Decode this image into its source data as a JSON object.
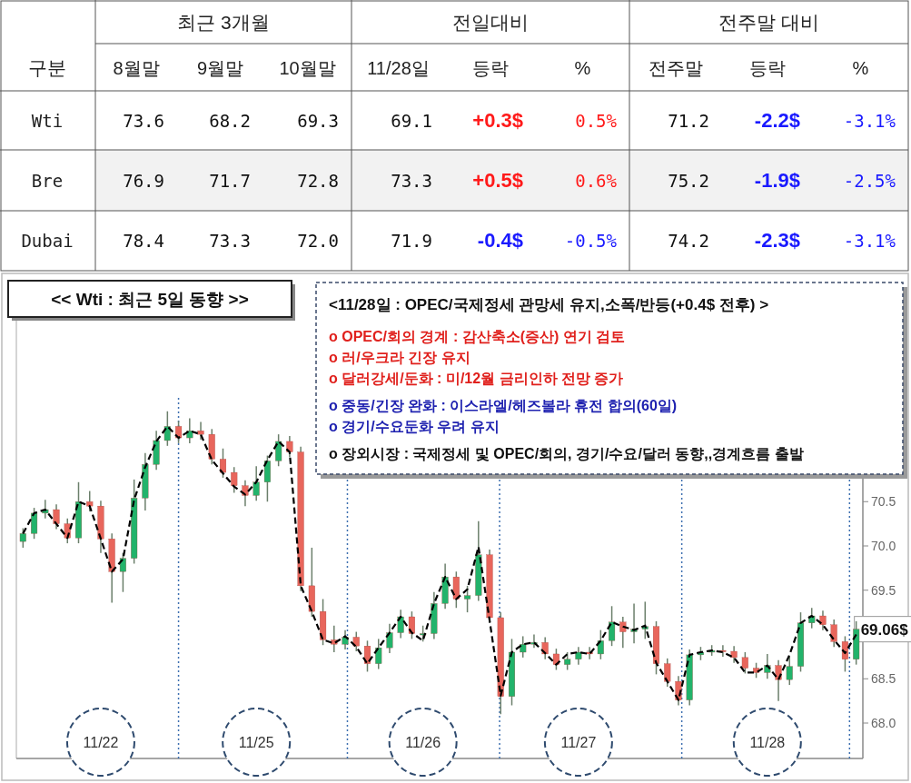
{
  "chart_data": [
    {
      "type": "other",
      "annotations": [
        "구분",
        "최근 3개월",
        "전일대비",
        "전주말 대비"
      ],
      "categories": [
        "8월말",
        "9월말",
        "10월말",
        "11/28일",
        "등락",
        "%",
        "전주말",
        "등락",
        "%"
      ],
      "y_categories": [
        "Wti",
        "Bre",
        "Dubai"
      ],
      "cell_labels": [
        [
          "73.6",
          "68.2",
          "69.3",
          "69.1",
          "+0.3$",
          "0.5%",
          "71.2",
          "-2.2$",
          "-3.1%"
        ],
        [
          "76.9",
          "71.7",
          "72.8",
          "73.3",
          "+0.5$",
          "0.6%",
          "75.2",
          "-1.9$",
          "-2.5%"
        ],
        [
          "78.4",
          "73.3",
          "72.0",
          "71.9",
          "-0.4$",
          "-0.5%",
          "74.2",
          "-2.3$",
          "-3.1%"
        ]
      ]
    },
    {
      "type": "candlestick",
      "title": "<< Wti : 최근 5일 동향 >>",
      "subtitle": "<11/28일 : OPEC/국제정세 관망세 유지,소폭/반등(+0.4$ 전후) >",
      "annotations": [
        "o OPEC/회의 경계 : 감산축소(증산) 연기 검토",
        "o 러/우크라 긴장 유지",
        "o 달러강세/둔화 : 미/12월 금리인하 전망 증가",
        "o 중동/긴장 완화 : 이스라엘/헤즈볼라 휴전 합의(60일)",
        "o 경기/수요둔화 우려 유지",
        "o 장외시장 : 국제정세 및 OPEC/회의, 경기/수요/달러 동향,,경계흐름 출발",
        "69.06$"
      ],
      "categories": [
        null,
        null,
        null,
        null,
        null,
        null,
        null,
        "11/22",
        null,
        null,
        null,
        null,
        null,
        null,
        null,
        null,
        null,
        null,
        null,
        null,
        null,
        "11/25",
        null,
        null,
        null,
        null,
        null,
        null,
        null,
        null,
        null,
        null,
        null,
        null,
        null,
        null,
        "11/26",
        null,
        null,
        null,
        null,
        null,
        null,
        null,
        null,
        null,
        null,
        null,
        null,
        null,
        "11/27",
        null,
        null,
        null,
        null,
        null,
        null,
        null,
        null,
        null,
        null,
        null,
        null,
        null,
        null,
        null,
        null,
        "11/28",
        null,
        null,
        null,
        null,
        null,
        null,
        null,
        null
      ],
      "ohlc": [
        [
          70.05,
          70.2,
          69.98,
          70.14
        ],
        [
          70.14,
          70.43,
          70.08,
          70.37
        ],
        [
          70.37,
          70.52,
          70.31,
          70.41
        ],
        [
          70.41,
          70.47,
          70.19,
          70.25
        ],
        [
          70.25,
          70.31,
          70.03,
          70.09
        ],
        [
          70.09,
          70.72,
          70.03,
          70.5
        ],
        [
          70.5,
          70.62,
          70.39,
          70.45
        ],
        [
          70.45,
          70.51,
          69.92,
          70.08
        ],
        [
          70.08,
          70.14,
          69.36,
          69.71
        ],
        [
          69.71,
          69.92,
          69.48,
          69.86
        ],
        [
          69.86,
          70.75,
          69.8,
          70.54
        ],
        [
          70.54,
          71.05,
          70.4,
          70.92
        ],
        [
          70.92,
          71.3,
          70.86,
          71.19
        ],
        [
          71.19,
          71.52,
          71.13,
          71.35
        ],
        [
          71.35,
          71.41,
          71.16,
          71.22
        ],
        [
          71.22,
          71.44,
          71.16,
          71.3
        ],
        [
          71.3,
          71.4,
          71.2,
          71.26
        ],
        [
          71.26,
          71.32,
          70.92,
          70.98
        ],
        [
          70.98,
          71.1,
          70.77,
          70.83
        ],
        [
          70.83,
          70.89,
          70.6,
          70.68
        ],
        [
          70.68,
          70.74,
          70.45,
          70.57
        ],
        [
          70.57,
          70.9,
          70.51,
          70.72
        ],
        [
          70.72,
          71.02,
          70.5,
          70.96
        ],
        [
          70.96,
          71.26,
          70.9,
          71.18
        ],
        [
          71.18,
          71.24,
          71.0,
          71.06
        ],
        [
          71.06,
          71.12,
          69.49,
          69.55
        ],
        [
          69.55,
          69.98,
          69.2,
          69.26
        ],
        [
          69.26,
          69.4,
          68.88,
          68.94
        ],
        [
          68.94,
          69.1,
          68.8,
          68.89
        ],
        [
          68.89,
          69.05,
          68.83,
          68.97
        ],
        [
          68.97,
          69.03,
          68.81,
          68.87
        ],
        [
          68.87,
          68.93,
          68.58,
          68.67
        ],
        [
          68.67,
          68.95,
          68.61,
          68.85
        ],
        [
          68.85,
          69.12,
          68.79,
          69.02
        ],
        [
          69.02,
          69.28,
          68.96,
          69.2
        ],
        [
          69.2,
          69.26,
          68.95,
          69.01
        ],
        [
          69.01,
          69.1,
          68.92,
          69.01
        ],
        [
          69.01,
          69.48,
          68.95,
          69.35
        ],
        [
          69.35,
          69.8,
          69.29,
          69.65
        ],
        [
          69.65,
          69.71,
          69.3,
          69.4
        ],
        [
          69.4,
          69.55,
          69.25,
          69.44
        ],
        [
          69.44,
          70.28,
          69.38,
          69.9
        ],
        [
          69.9,
          69.96,
          69.13,
          69.19
        ],
        [
          69.19,
          69.25,
          68.1,
          68.3
        ],
        [
          68.3,
          68.95,
          68.2,
          68.8
        ],
        [
          68.8,
          68.98,
          68.74,
          68.89
        ],
        [
          68.89,
          69.0,
          68.85,
          68.91
        ],
        [
          68.91,
          68.97,
          68.72,
          68.78
        ],
        [
          68.78,
          68.84,
          68.6,
          68.66
        ],
        [
          68.66,
          68.8,
          68.6,
          68.72
        ],
        [
          68.72,
          68.86,
          68.66,
          68.8
        ],
        [
          68.8,
          68.86,
          68.72,
          68.78
        ],
        [
          68.78,
          69.05,
          68.72,
          68.93
        ],
        [
          68.93,
          69.32,
          68.87,
          69.14
        ],
        [
          69.14,
          69.2,
          68.85,
          69.03
        ],
        [
          69.03,
          69.35,
          68.9,
          69.06
        ],
        [
          69.06,
          69.37,
          68.95,
          69.09
        ],
        [
          69.09,
          69.15,
          68.55,
          68.67
        ],
        [
          68.67,
          68.73,
          68.41,
          68.47
        ],
        [
          68.47,
          68.53,
          68.2,
          68.26
        ],
        [
          68.26,
          68.83,
          68.2,
          68.77
        ],
        [
          68.77,
          68.86,
          68.71,
          68.8
        ],
        [
          68.8,
          68.88,
          68.76,
          68.82
        ],
        [
          68.82,
          68.88,
          68.75,
          68.81
        ],
        [
          68.81,
          68.87,
          68.68,
          68.74
        ],
        [
          68.74,
          68.8,
          68.56,
          68.62
        ],
        [
          68.62,
          68.68,
          68.51,
          68.57
        ],
        [
          68.57,
          68.78,
          68.5,
          68.65
        ],
        [
          68.65,
          68.71,
          68.25,
          68.49
        ],
        [
          68.49,
          68.75,
          68.43,
          68.64
        ],
        [
          68.64,
          69.25,
          68.58,
          69.13
        ],
        [
          69.13,
          69.3,
          69.07,
          69.21
        ],
        [
          69.21,
          69.27,
          69.05,
          69.11
        ],
        [
          69.11,
          69.17,
          68.86,
          68.92
        ],
        [
          68.92,
          68.98,
          68.58,
          68.72
        ],
        [
          68.72,
          69.15,
          68.66,
          69.06
        ]
      ],
      "colors": [
        "#22b36b",
        "#22b36b",
        "#22b36b",
        "#e8665c",
        "#e8665c",
        "#22b36b",
        "#e8665c",
        "#e8665c",
        "#e8665c",
        "#22b36b",
        "#22b36b",
        "#22b36b",
        "#22b36b",
        "#22b36b",
        "#e8665c",
        "#22b36b",
        "#e8665c",
        "#e8665c",
        "#e8665c",
        "#e8665c",
        "#e8665c",
        "#22b36b",
        "#22b36b",
        "#22b36b",
        "#e8665c",
        "#e8665c",
        "#e8665c",
        "#e8665c",
        "#e8665c",
        "#22b36b",
        "#e8665c",
        "#e8665c",
        "#22b36b",
        "#22b36b",
        "#22b36b",
        "#e8665c",
        "#22b36b",
        "#22b36b",
        "#22b36b",
        "#e8665c",
        "#22b36b",
        "#22b36b",
        "#e8665c",
        "#e8665c",
        "#22b36b",
        "#22b36b",
        "#22b36b",
        "#e8665c",
        "#e8665c",
        "#22b36b",
        "#22b36b",
        "#e8665c",
        "#22b36b",
        "#22b36b",
        "#e8665c",
        "#22b36b",
        "#22b36b",
        "#e8665c",
        "#e8665c",
        "#e8665c",
        "#22b36b",
        "#22b36b",
        "#22b36b",
        "#e8665c",
        "#e8665c",
        "#e8665c",
        "#e8665c",
        "#22b36b",
        "#e8665c",
        "#22b36b",
        "#22b36b",
        "#22b36b",
        "#e8665c",
        "#e8665c",
        "#e8665c",
        "#22b36b"
      ],
      "series": [
        {
          "type": "line",
          "color": "#000000",
          "line_style": "dashed",
          "values": [
            70.14,
            70.37,
            70.41,
            70.25,
            70.09,
            70.5,
            70.45,
            70.08,
            69.71,
            69.85,
            70.52,
            70.89,
            71.18,
            71.35,
            71.22,
            71.3,
            71.26,
            70.97,
            70.82,
            70.67,
            70.58,
            70.72,
            70.97,
            71.18,
            71.06,
            69.55,
            69.26,
            68.94,
            68.9,
            68.98,
            68.86,
            68.67,
            68.85,
            69.02,
            69.2,
            69.02,
            68.93,
            69.35,
            69.65,
            69.4,
            69.51,
            69.99,
            69.16,
            68.31,
            68.8,
            68.89,
            68.91,
            68.79,
            68.66,
            68.78,
            68.8,
            68.78,
            68.93,
            69.14,
            69.09,
            69.05,
            69.1,
            68.68,
            68.47,
            68.26,
            68.77,
            68.8,
            68.82,
            68.8,
            68.74,
            68.57,
            68.57,
            68.65,
            68.49,
            68.77,
            69.13,
            69.21,
            69.11,
            68.94,
            68.79,
            69.0
          ]
        }
      ],
      "ylim": [
        67.6,
        72.8
      ],
      "yticks": [
        {
          "value": 68,
          "label": "68.0"
        },
        {
          "value": 68.5,
          "label": "68.5"
        },
        {
          "value": 69.5,
          "label": "69.5"
        },
        {
          "value": 70,
          "label": "70.0"
        },
        {
          "value": 70.5,
          "label": "70.5"
        }
      ]
    }
  ]
}
